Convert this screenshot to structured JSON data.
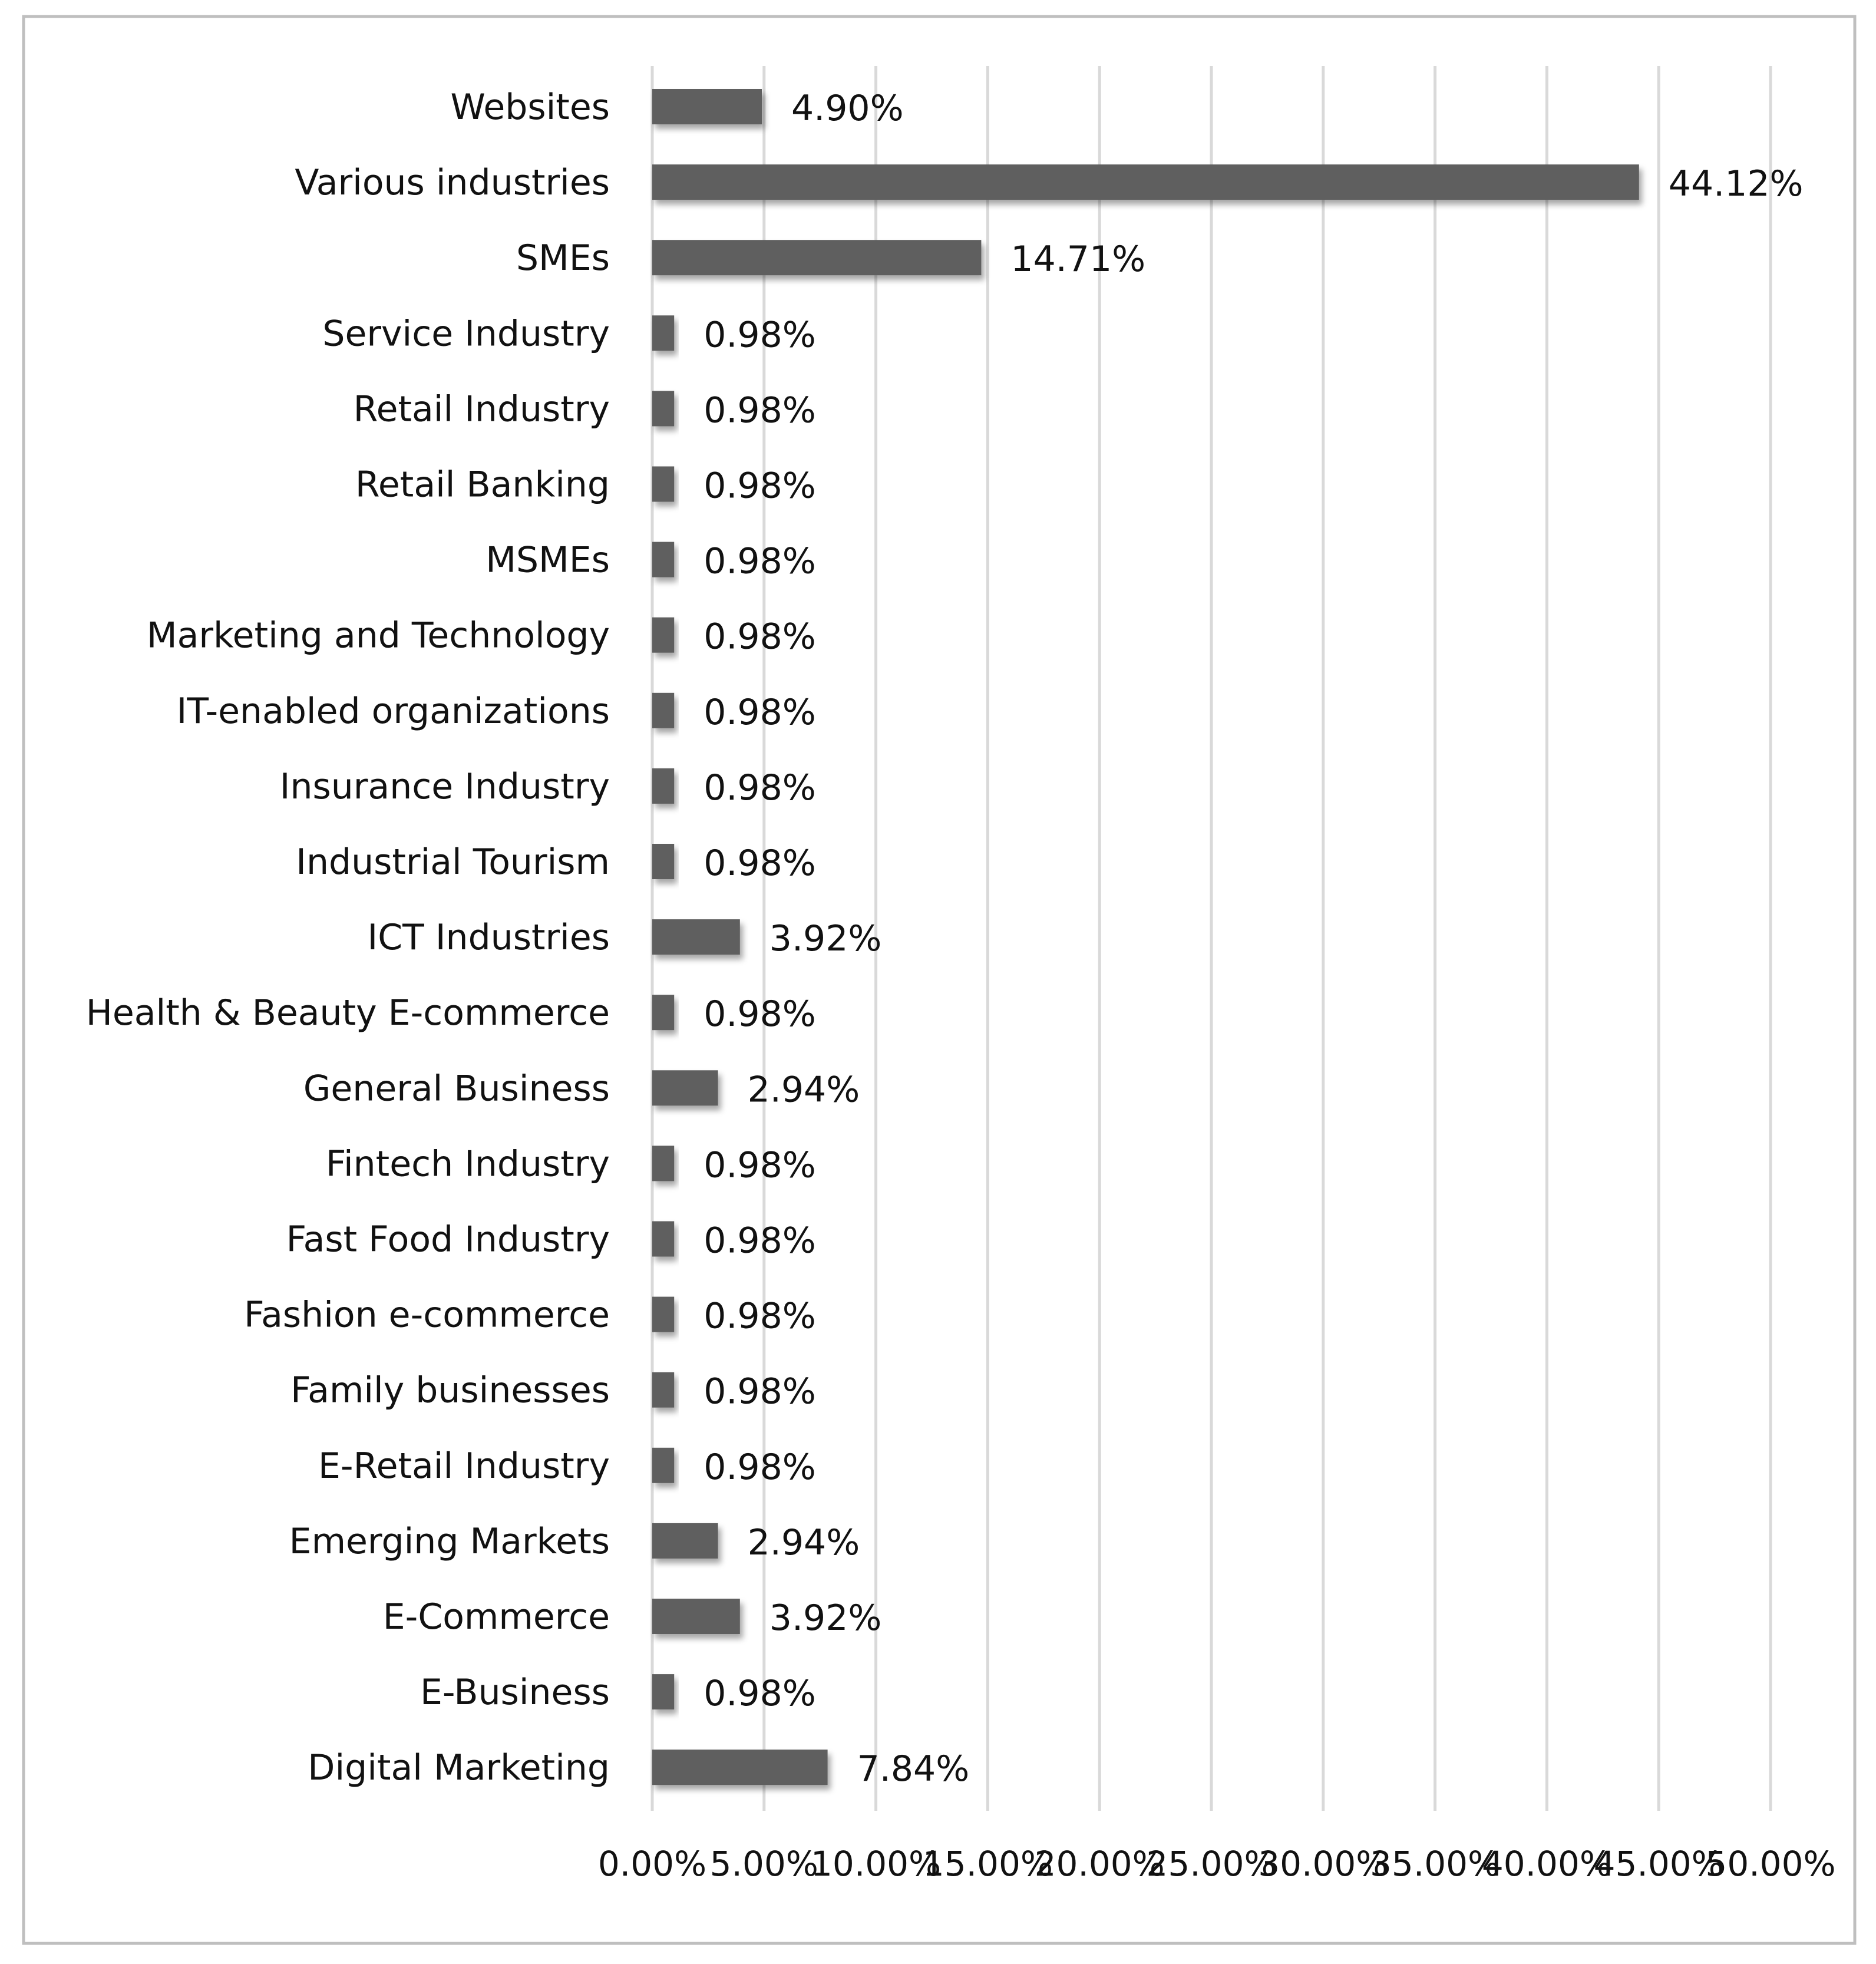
{
  "chart_data": {
    "type": "bar",
    "orientation": "horizontal",
    "title": "",
    "xlabel": "",
    "ylabel": "",
    "xlim": [
      0,
      50
    ],
    "grid": "vertical",
    "legend": "none",
    "bar_color": "#5f5f5f",
    "gridline_color": "#d9d9d9",
    "border_color": "#bfbfbf",
    "tick_labels": [
      "0.00%",
      "5.00%",
      "10.00%",
      "15.00%",
      "20.00%",
      "25.00%",
      "30.00%",
      "35.00%",
      "40.00%",
      "45.00%",
      "50.00%"
    ],
    "categories": [
      "Websites",
      "Various industries",
      "SMEs",
      "Service Industry",
      "Retail Industry",
      "Retail Banking",
      "MSMEs",
      "Marketing and Technology",
      "IT-enabled organizations",
      "Insurance Industry",
      "Industrial Tourism",
      "ICT Industries",
      "Health & Beauty E-commerce",
      "General Business",
      "Fintech Industry",
      "Fast Food Industry",
      "Fashion e-commerce",
      "Family businesses",
      "E-Retail Industry",
      "Emerging Markets",
      "E-Commerce",
      "E-Business",
      "Digital Marketing"
    ],
    "values": [
      4.9,
      44.12,
      14.71,
      0.98,
      0.98,
      0.98,
      0.98,
      0.98,
      0.98,
      0.98,
      0.98,
      3.92,
      0.98,
      2.94,
      0.98,
      0.98,
      0.98,
      0.98,
      0.98,
      2.94,
      3.92,
      0.98,
      7.84
    ],
    "value_labels": [
      "4.90%",
      "44.12%",
      "14.71%",
      "0.98%",
      "0.98%",
      "0.98%",
      "0.98%",
      "0.98%",
      "0.98%",
      "0.98%",
      "0.98%",
      "3.92%",
      "0.98%",
      "2.94%",
      "0.98%",
      "0.98%",
      "0.98%",
      "0.98%",
      "0.98%",
      "2.94%",
      "3.92%",
      "0.98%",
      "7.84%"
    ]
  }
}
